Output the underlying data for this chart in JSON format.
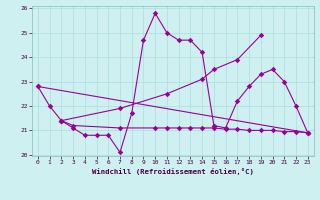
{
  "xlabel": "Windchill (Refroidissement éolien,°C)",
  "background_color": "#cff0f0",
  "grid_color": "#aadddd",
  "line_color": "#990099",
  "ylim": [
    20,
    26
  ],
  "xlim": [
    -0.5,
    23.5
  ],
  "yticks": [
    20,
    21,
    22,
    23,
    24,
    25,
    26
  ],
  "xticks": [
    0,
    1,
    2,
    3,
    4,
    5,
    6,
    7,
    8,
    9,
    10,
    11,
    12,
    13,
    14,
    15,
    16,
    17,
    18,
    19,
    20,
    21,
    22,
    23
  ],
  "series": [
    {
      "x": [
        0,
        1,
        2,
        3,
        4,
        5,
        6,
        7,
        8,
        9,
        10,
        11,
        12,
        13,
        14,
        15
      ],
      "y": [
        22.8,
        22.0,
        21.4,
        21.1,
        20.8,
        20.8,
        20.8,
        20.1,
        21.7,
        24.7,
        25.8,
        25.0,
        24.7,
        24.7,
        24.2,
        21.2
      ]
    },
    {
      "x": [
        15,
        16,
        17,
        18,
        19,
        20,
        21,
        22,
        23
      ],
      "y": [
        21.2,
        21.1,
        22.2,
        22.8,
        23.3,
        23.5,
        23.0,
        22.0,
        20.9
      ]
    },
    {
      "x": [
        2,
        7,
        11,
        14,
        15,
        17,
        19
      ],
      "y": [
        21.4,
        21.9,
        22.5,
        23.1,
        23.5,
        23.9,
        24.9
      ]
    },
    {
      "x": [
        2,
        3,
        7,
        10,
        11,
        12,
        13,
        14,
        15,
        16,
        17,
        18,
        19,
        20,
        21,
        22,
        23
      ],
      "y": [
        21.4,
        21.2,
        21.1,
        21.1,
        21.1,
        21.1,
        21.1,
        21.1,
        21.1,
        21.05,
        21.05,
        21.0,
        21.0,
        21.0,
        20.95,
        20.95,
        20.9
      ]
    },
    {
      "x": [
        0,
        23
      ],
      "y": [
        22.8,
        20.9
      ]
    }
  ]
}
